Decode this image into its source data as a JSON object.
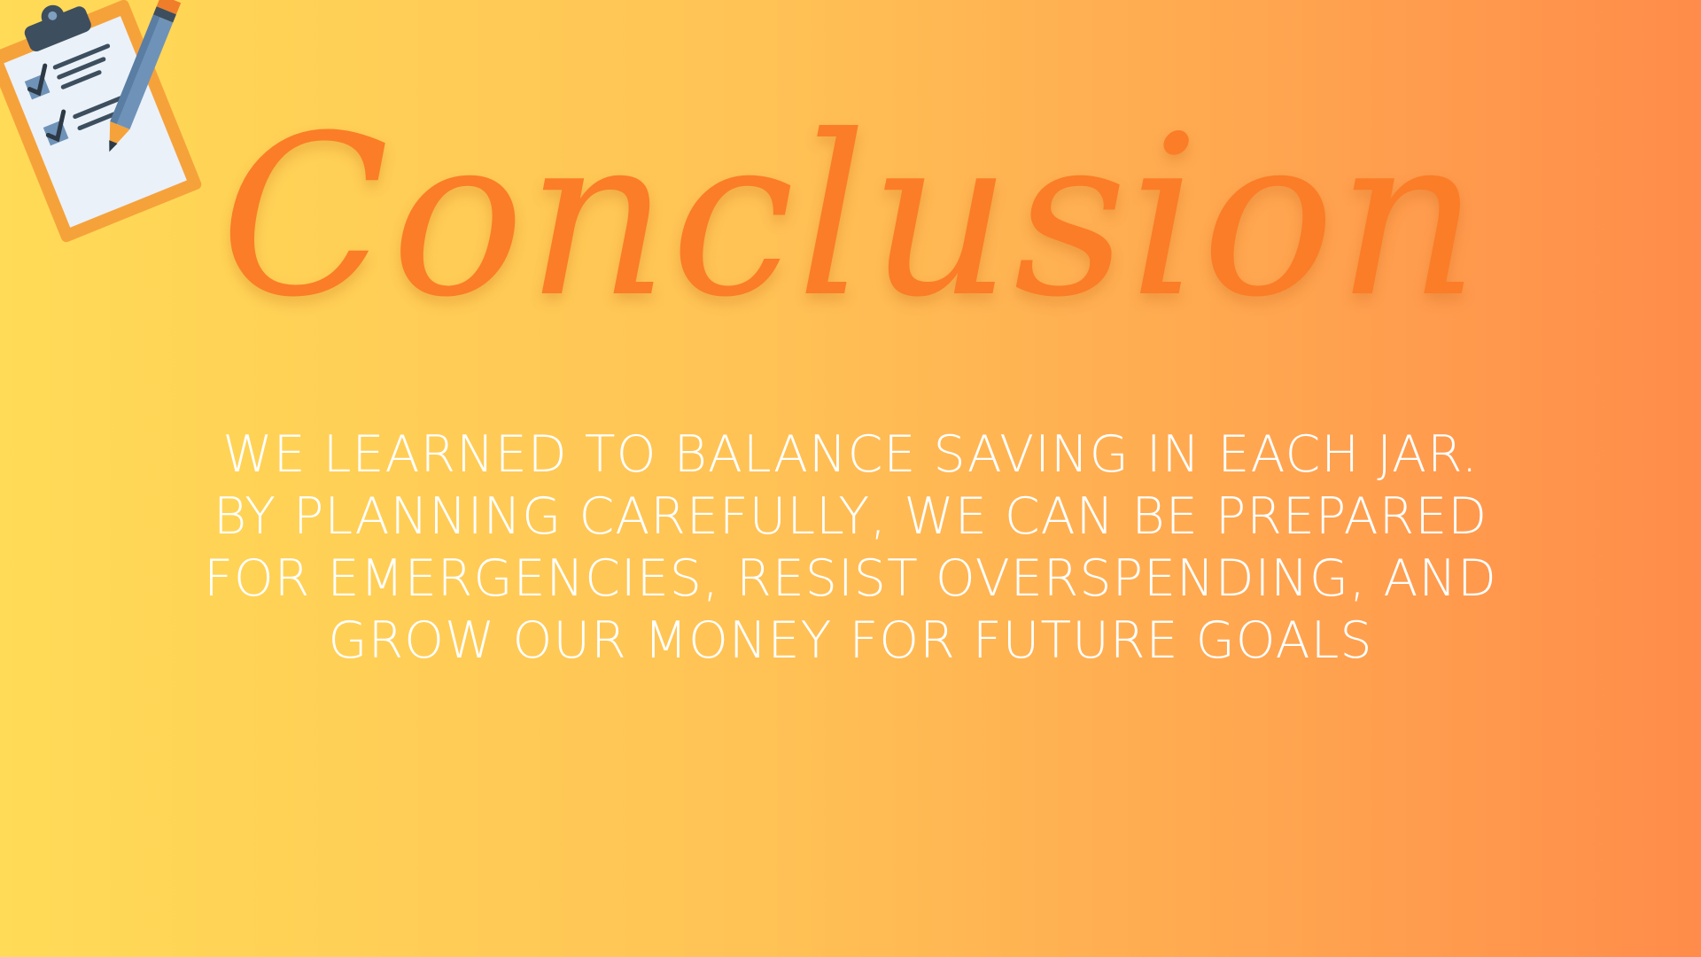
{
  "slide": {
    "title": "Conclusion",
    "body_lines": [
      "WE LEARNED TO BALANCE SAVING IN EACH JAR.",
      "BY PLANNING CAREFULLY, WE CAN BE PREPARED",
      "FOR EMERGENCIES, RESIST OVERSPENDING, AND",
      "GROW OUR MONEY FOR FUTURE GOALS"
    ],
    "icon": "clipboard-checklist-with-pencil-icon",
    "colors": {
      "background_start": "#ffdb57",
      "background_end": "#ff8c4a",
      "title": "#fb7d27",
      "body_text": "#ffffff"
    }
  }
}
